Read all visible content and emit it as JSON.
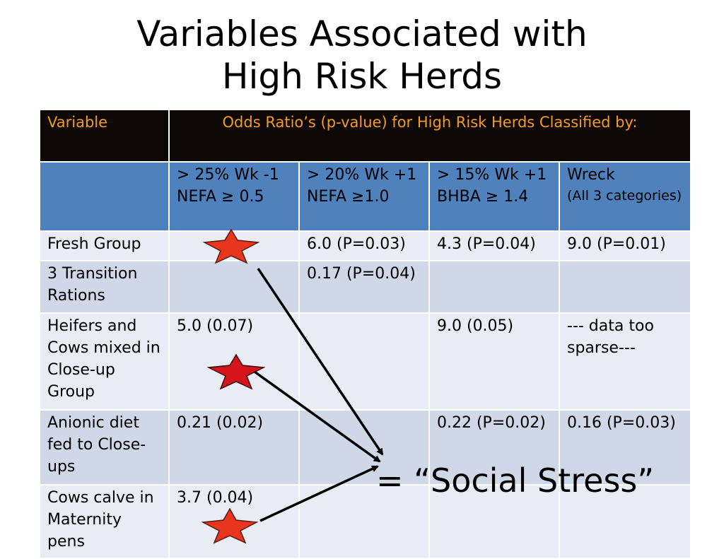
{
  "title": {
    "line1": "Variables Associated with",
    "line2": "High Risk Herds"
  },
  "table": {
    "header": {
      "variable": "Variable",
      "odds": "Odds Ratio’s (p-value) for High Risk Herds Classified by:"
    },
    "subheader": {
      "c1": {
        "line1": "> 25% Wk -1",
        "line2": "NEFA ≥ 0.5"
      },
      "c2": {
        "line1": "> 20% Wk +1",
        "line2": "NEFA ≥1.0"
      },
      "c3": {
        "line1": "> 15% Wk +1",
        "line2": "BHBA ≥ 1.4"
      },
      "c4": {
        "line1": "Wreck",
        "line2": "(All 3 categories)"
      }
    },
    "rows": [
      {
        "variable": "Fresh Group",
        "c1": "",
        "c2": "6.0 (P=0.03)",
        "c3": "4.3 (P=0.04)",
        "c4": "9.0 (P=0.01)"
      },
      {
        "variable": "3 Transition Rations",
        "c1": "",
        "c2": "0.17 (P=0.04)",
        "c3": "",
        "c4": ""
      },
      {
        "variable": "Heifers and Cows mixed in Close-up Group",
        "c1": "5.0 (0.07)",
        "c2": "",
        "c3": "9.0 (0.05)",
        "c4": "--- data too sparse---"
      },
      {
        "variable": "Anionic diet fed to Close-ups",
        "c1": "0.21 (0.02)",
        "c2": "",
        "c3": "0.22 (P=0.02)",
        "c4": "0.16 (P=0.03)"
      },
      {
        "variable": "Cows calve in Maternity pens",
        "c1": "3.7 (0.04)",
        "c2": "",
        "c3": "",
        "c4": ""
      }
    ]
  },
  "annotation": {
    "text": "= “Social Stress”"
  },
  "colors": {
    "header_bg": "#0d0806",
    "header_text": "#f59b1b",
    "subheader_bg": "#4f81bd",
    "row_light": "#e9ecf5",
    "row_dark": "#d0d8e8",
    "star": "#e8351e"
  }
}
